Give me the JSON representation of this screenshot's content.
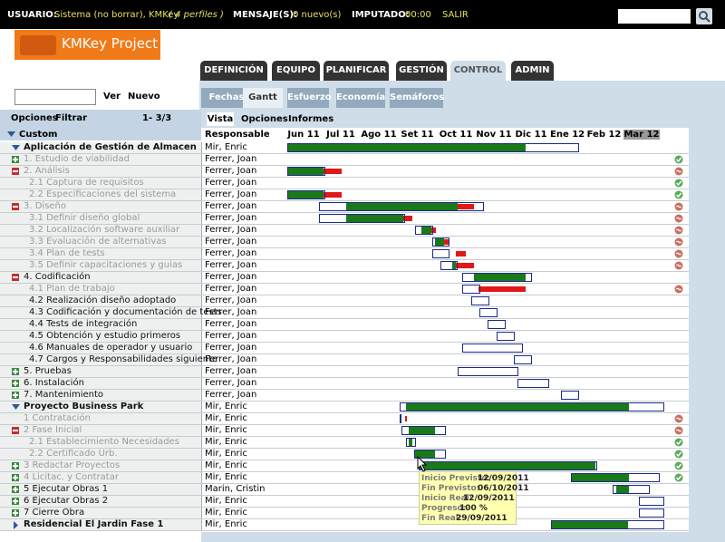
{
  "top_bar": {
    "user_label": "USUARIO:",
    "user": "Sistema (no borrar), KMKey",
    "profiles": "( 4 perfiles )",
    "messages_label": "MENSAJE(S):",
    "messages": "0 nuevo(s)",
    "imputed_label": "IMPUTADO:",
    "imputed": "00:00",
    "logout": "SALIR"
  },
  "logo": "KMKey Project",
  "tabs": [
    "DEFINICIÓN",
    "EQUIPO",
    "PLANIFICAR",
    "GESTIÓN",
    "CONTROL",
    "ADMIN"
  ],
  "subtabs": [
    "Fechas",
    "Gantt",
    "Esfuerzo",
    "Economía",
    "Semáforos"
  ],
  "search": {
    "ver": "Ver",
    "nuevo": "Nuevo"
  },
  "left_panel": {
    "opciones": "Opciones",
    "filtrar": "Filtrar",
    "pager": "1- 3/3",
    "group": "Custom"
  },
  "view_tabs": [
    "Vista",
    "Opciones",
    "Informes"
  ],
  "gantt": {
    "responsable_header": "Responsable",
    "months": [
      "Jun 11",
      "Jul 11",
      "Ago 11",
      "Set 11",
      "Oct 11",
      "Nov 11",
      "Dic 11",
      "Ene 12",
      "Feb 12",
      "Mar 12"
    ],
    "rows": [
      {
        "task": "Aplicación de Gestión de Almacen",
        "responsible": "Mir, Enric"
      },
      {
        "task": "1. Estudio de viabilidad",
        "responsible": "Ferrer, Joan"
      },
      {
        "task": "2. Análisis",
        "responsible": "Ferrer, Joan"
      },
      {
        "task": "2.1 Captura de requisitos",
        "responsible": "Ferrer, Joan"
      },
      {
        "task": "2.2 Especificaciones del sistema",
        "responsible": "Ferrer, Joan"
      },
      {
        "task": "3. Diseño",
        "responsible": "Ferrer, Joan"
      },
      {
        "task": "3.1 Definir diseño global",
        "responsible": "Ferrer, Joan"
      },
      {
        "task": "3.2 Localización software auxiliar",
        "responsible": "Ferrer, Joan"
      },
      {
        "task": "3.3 Evaluación de alternativas",
        "responsible": "Ferrer, Joan"
      },
      {
        "task": "3.4 Plan de tests",
        "responsible": "Ferrer, Joan"
      },
      {
        "task": "3.5 Definir capacitaciones y guias",
        "responsible": "Ferrer, Joan"
      },
      {
        "task": "4. Codificación",
        "responsible": "Ferrer, Joan"
      },
      {
        "task": "4.1 Plan de trabajo",
        "responsible": "Ferrer, Joan"
      },
      {
        "task": "4.2 Realización diseño adoptado",
        "responsible": "Ferrer, Joan"
      },
      {
        "task": "4.3 Codificación y documentación de tests",
        "responsible": "Ferrer, Joan"
      },
      {
        "task": "4.4 Tests de integración",
        "responsible": "Ferrer, Joan"
      },
      {
        "task": "4.5 Obtención y estudio primeros",
        "responsible": "Ferrer, Joan"
      },
      {
        "task": "4.6 Manuales de operador y usuario",
        "responsible": "Ferrer, Joan"
      },
      {
        "task": "4.7 Cargos y Responsabilidades siguiente",
        "responsible": "Ferrer, Joan"
      },
      {
        "task": "5. Pruebas",
        "responsible": "Ferrer, Joan"
      },
      {
        "task": "6. Instalación",
        "responsible": "Ferrer, Joan"
      },
      {
        "task": "7. Mantenimiento",
        "responsible": "Ferrer, Joan"
      },
      {
        "task": "Proyecto Business Park",
        "responsible": "Mir, Enric"
      },
      {
        "task": "1 Contratación",
        "responsible": "Mir, Enric"
      },
      {
        "task": "2 Fase Inicial",
        "responsible": "Mir, Enric"
      },
      {
        "task": "2.1 Establecimiento Necesidades",
        "responsible": "Mir, Enric"
      },
      {
        "task": "2.2 Certificado Urb.",
        "responsible": "Mir, Enric"
      },
      {
        "task": "3 Redactar Proyectos",
        "responsible": "Mir, Enric"
      },
      {
        "task": "4 Licitac. y Contratar",
        "responsible": "Mir, Enric"
      },
      {
        "task": "5 Ejecutar Obras 1",
        "responsible": "Marin, Cristin"
      },
      {
        "task": "6 Ejecutar Obras 2",
        "responsible": "Mir, Enric"
      },
      {
        "task": "7 Cierre Obra",
        "responsible": "Mir, Enric"
      },
      {
        "task": "Residencial El Jardin Fase 1",
        "responsible": "Mir, Enric"
      }
    ]
  },
  "tooltip": [
    {
      "label": "Inicio Previsto:",
      "value": "12/09/2011"
    },
    {
      "label": "Fin Previsto:",
      "value": "06/10/2011"
    },
    {
      "label": "Inicio Real:",
      "value": "12/09/2011"
    },
    {
      "label": "Progreso:",
      "value": "100 %"
    },
    {
      "label": "Fin Real:",
      "value": "29/09/2011"
    }
  ]
}
